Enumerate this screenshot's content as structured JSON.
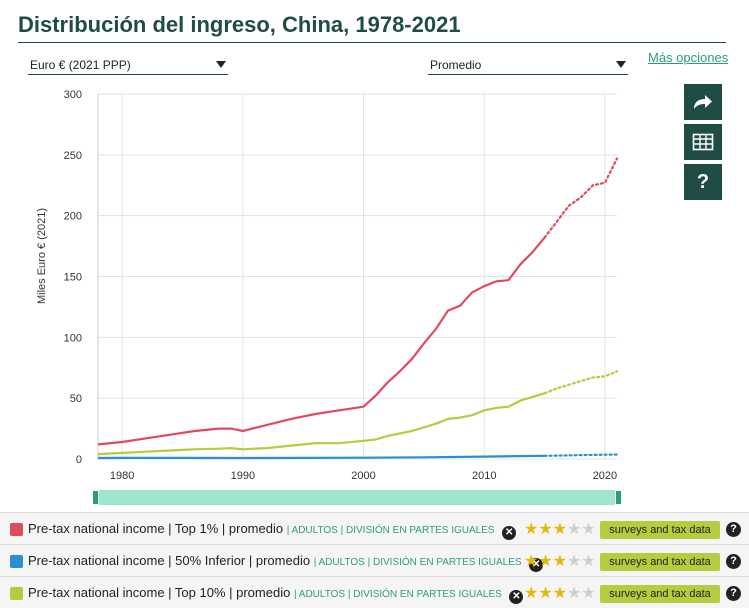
{
  "title": "Distribución del ingreso, China, 1978-2021",
  "controls": {
    "currency": "Euro € (2021 PPP)",
    "measure": "Promedio",
    "more_options": "Más opciones"
  },
  "side_buttons": [
    {
      "name": "share",
      "icon": "share-icon"
    },
    {
      "name": "table",
      "icon": "table-icon"
    },
    {
      "name": "help",
      "icon": "help-icon",
      "label": "?"
    }
  ],
  "chart_data": {
    "type": "line",
    "ylabel": "Miles Euro € (2021)",
    "xlabel": "",
    "xlim": [
      1978,
      2021
    ],
    "ylim": [
      0,
      300
    ],
    "xticks": [
      1980,
      1990,
      2000,
      2010,
      2020
    ],
    "yticks": [
      0,
      50,
      100,
      150,
      200,
      250,
      300
    ],
    "grid": true,
    "estimated_from": 2015,
    "series": [
      {
        "key": "top1",
        "color": "#e04b5a",
        "x": [
          1978,
          1980,
          1982,
          1984,
          1986,
          1988,
          1989,
          1990,
          1992,
          1994,
          1996,
          1998,
          2000,
          2001,
          2002,
          2003,
          2004,
          2005,
          2006,
          2007,
          2008,
          2009,
          2010,
          2011,
          2012,
          2013,
          2014,
          2015,
          2016,
          2017,
          2018,
          2019,
          2020,
          2021
        ],
        "values": [
          12,
          14,
          17,
          20,
          23,
          25,
          25,
          23,
          28,
          33,
          37,
          40,
          43,
          52,
          63,
          72,
          82,
          95,
          107,
          122,
          126,
          137,
          142,
          146,
          147,
          160,
          170,
          182,
          195,
          208,
          215,
          225,
          227,
          247
        ]
      },
      {
        "key": "bottom50",
        "color": "#2a8fd1",
        "x": [
          1978,
          1980,
          1985,
          1990,
          1995,
          2000,
          2005,
          2010,
          2015,
          2016,
          2017,
          2018,
          2019,
          2020,
          2021
        ],
        "values": [
          0.8,
          0.9,
          0.9,
          0.8,
          0.9,
          1.1,
          1.4,
          2.0,
          2.6,
          2.8,
          3.0,
          3.2,
          3.4,
          3.5,
          3.7
        ]
      },
      {
        "key": "top10",
        "color": "#b5cc3f",
        "x": [
          1978,
          1980,
          1982,
          1984,
          1986,
          1988,
          1989,
          1990,
          1992,
          1994,
          1996,
          1998,
          2000,
          2001,
          2002,
          2004,
          2006,
          2007,
          2008,
          2009,
          2010,
          2011,
          2012,
          2013,
          2014,
          2015,
          2016,
          2017,
          2018,
          2019,
          2020,
          2021
        ],
        "values": [
          4,
          5,
          6,
          7,
          8,
          8.5,
          9,
          8,
          9,
          11,
          13,
          13,
          15,
          16,
          19,
          23,
          29,
          33,
          34,
          36,
          40,
          42,
          43,
          48,
          51,
          54,
          58,
          61,
          64,
          67,
          68,
          72
        ]
      }
    ]
  },
  "legend": [
    {
      "main": "Pre-tax national income | Top 1% | promedio",
      "tags": "| ADULTOS | DIVISIÓN EN PARTES IGUALES",
      "remove": "✕",
      "stars_on": 3,
      "stars_total": 5,
      "source": "surveys and tax data",
      "help": "?",
      "color": "#e04b5a"
    },
    {
      "main": "Pre-tax national income | 50% Inferior | promedio",
      "tags": "| ADULTOS | DIVISIÓN EN PARTES IGUALES",
      "remove": "✕",
      "stars_on": 3,
      "stars_total": 5,
      "source": "surveys and tax data",
      "help": "?",
      "color": "#2a8fd1"
    },
    {
      "main": "Pre-tax national income | Top 10% | promedio",
      "tags": "| ADULTOS | DIVISIÓN EN PARTES IGUALES",
      "remove": "✕",
      "stars_on": 3,
      "stars_total": 5,
      "source": "surveys and tax data",
      "help": "?",
      "color": "#b5cc3f"
    }
  ]
}
